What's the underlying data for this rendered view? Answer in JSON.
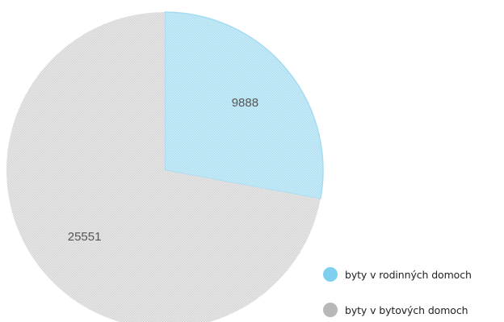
{
  "chart_data": {
    "type": "pie",
    "categories": [
      "byty v rodinných domoch",
      "byty v bytových domoch"
    ],
    "values": [
      9888,
      25551
    ],
    "labels": [
      "9888",
      "25551"
    ],
    "colors": {
      "byty v rodinných domoch": "#bfe6f7",
      "byty v bytových domoch": "#e2e2e2"
    },
    "legend_colors": [
      "#7fd0f0",
      "#b8b8b8"
    ],
    "legend_position": "bottom-right",
    "title": ""
  }
}
